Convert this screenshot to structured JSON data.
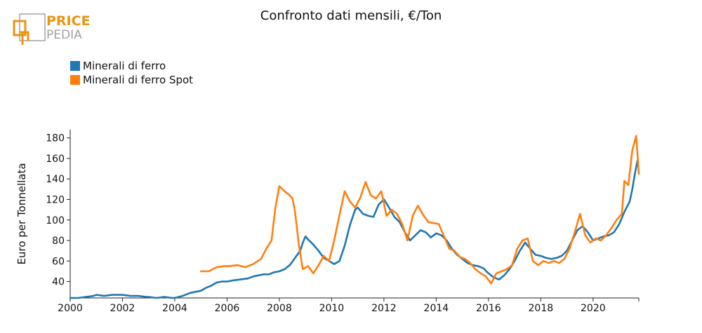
{
  "logo": {
    "line1": "PRICE",
    "line2": "PEDIA",
    "accent": "#e8960f",
    "gray": "#a0a0a0"
  },
  "chart_data": {
    "type": "line",
    "title": "Confronto dati mensili, €/Ton",
    "ylabel": "Euro per Tonnellata",
    "xlabel": "",
    "xlim": [
      2000,
      2021.75
    ],
    "ylim": [
      24,
      188
    ],
    "x_ticks": [
      2000,
      2002,
      2004,
      2006,
      2008,
      2010,
      2012,
      2014,
      2016,
      2018,
      2020
    ],
    "x_tick_labels": [
      "2000",
      "2002",
      "2004",
      "2006",
      "2008",
      "2010",
      "2012",
      "2014",
      "2016",
      "2018",
      "2020"
    ],
    "y_ticks": [
      40,
      60,
      80,
      100,
      120,
      140,
      160,
      180
    ],
    "y_tick_labels": [
      "40",
      "60",
      "80",
      "100",
      "120",
      "140",
      "160",
      "180"
    ],
    "legend_position": "top-left",
    "grid": false,
    "series": [
      {
        "name": "Minerali di ferro",
        "color": "#1f77b4",
        "points": [
          [
            2000.0,
            24
          ],
          [
            2000.3,
            24
          ],
          [
            2000.6,
            25
          ],
          [
            2000.9,
            26
          ],
          [
            2001.0,
            27
          ],
          [
            2001.3,
            26
          ],
          [
            2001.6,
            27
          ],
          [
            2001.9,
            27
          ],
          [
            2002.0,
            27
          ],
          [
            2002.3,
            26
          ],
          [
            2002.6,
            26
          ],
          [
            2002.9,
            25
          ],
          [
            2003.0,
            25
          ],
          [
            2003.3,
            24
          ],
          [
            2003.6,
            25
          ],
          [
            2003.9,
            24
          ],
          [
            2004.0,
            24
          ],
          [
            2004.3,
            26
          ],
          [
            2004.6,
            29
          ],
          [
            2004.8,
            30
          ],
          [
            2005.0,
            31
          ],
          [
            2005.2,
            34
          ],
          [
            2005.4,
            36
          ],
          [
            2005.6,
            39
          ],
          [
            2005.8,
            40
          ],
          [
            2006.0,
            40
          ],
          [
            2006.2,
            41
          ],
          [
            2006.5,
            42
          ],
          [
            2006.8,
            43
          ],
          [
            2007.0,
            45
          ],
          [
            2007.2,
            46
          ],
          [
            2007.4,
            47
          ],
          [
            2007.6,
            47
          ],
          [
            2007.8,
            49
          ],
          [
            2008.0,
            50
          ],
          [
            2008.2,
            52
          ],
          [
            2008.4,
            56
          ],
          [
            2008.6,
            63
          ],
          [
            2008.8,
            70
          ],
          [
            2008.9,
            78
          ],
          [
            2009.0,
            84
          ],
          [
            2009.1,
            81
          ],
          [
            2009.3,
            76
          ],
          [
            2009.5,
            70
          ],
          [
            2009.7,
            63
          ],
          [
            2009.9,
            60
          ],
          [
            2010.1,
            57
          ],
          [
            2010.3,
            60
          ],
          [
            2010.5,
            75
          ],
          [
            2010.7,
            95
          ],
          [
            2010.9,
            110
          ],
          [
            2011.0,
            112
          ],
          [
            2011.2,
            106
          ],
          [
            2011.4,
            104
          ],
          [
            2011.6,
            103
          ],
          [
            2011.8,
            115
          ],
          [
            2012.0,
            120
          ],
          [
            2012.2,
            112
          ],
          [
            2012.4,
            103
          ],
          [
            2012.6,
            98
          ],
          [
            2012.8,
            88
          ],
          [
            2013.0,
            80
          ],
          [
            2013.2,
            85
          ],
          [
            2013.4,
            90
          ],
          [
            2013.6,
            88
          ],
          [
            2013.8,
            83
          ],
          [
            2014.0,
            87
          ],
          [
            2014.2,
            85
          ],
          [
            2014.4,
            80
          ],
          [
            2014.6,
            72
          ],
          [
            2014.8,
            66
          ],
          [
            2015.0,
            62
          ],
          [
            2015.2,
            58
          ],
          [
            2015.4,
            56
          ],
          [
            2015.6,
            55
          ],
          [
            2015.8,
            53
          ],
          [
            2016.0,
            48
          ],
          [
            2016.2,
            44
          ],
          [
            2016.4,
            42
          ],
          [
            2016.6,
            46
          ],
          [
            2016.8,
            52
          ],
          [
            2017.0,
            60
          ],
          [
            2017.2,
            70
          ],
          [
            2017.4,
            78
          ],
          [
            2017.6,
            72
          ],
          [
            2017.8,
            66
          ],
          [
            2018.0,
            65
          ],
          [
            2018.2,
            63
          ],
          [
            2018.4,
            62
          ],
          [
            2018.6,
            63
          ],
          [
            2018.8,
            65
          ],
          [
            2019.0,
            70
          ],
          [
            2019.2,
            80
          ],
          [
            2019.4,
            90
          ],
          [
            2019.6,
            94
          ],
          [
            2019.8,
            88
          ],
          [
            2020.0,
            80
          ],
          [
            2020.2,
            82
          ],
          [
            2020.4,
            84
          ],
          [
            2020.6,
            85
          ],
          [
            2020.8,
            88
          ],
          [
            2021.0,
            96
          ],
          [
            2021.2,
            108
          ],
          [
            2021.4,
            118
          ],
          [
            2021.5,
            130
          ],
          [
            2021.6,
            145
          ],
          [
            2021.7,
            158
          ]
        ]
      },
      {
        "name": "Minerali di ferro Spot",
        "color": "#ff7f0e",
        "points": [
          [
            2005.0,
            50
          ],
          [
            2005.3,
            50
          ],
          [
            2005.6,
            54
          ],
          [
            2005.9,
            55
          ],
          [
            2006.1,
            55
          ],
          [
            2006.4,
            56
          ],
          [
            2006.7,
            54
          ],
          [
            2007.0,
            57
          ],
          [
            2007.3,
            62
          ],
          [
            2007.5,
            72
          ],
          [
            2007.7,
            80
          ],
          [
            2007.85,
            112
          ],
          [
            2008.0,
            133
          ],
          [
            2008.2,
            128
          ],
          [
            2008.4,
            124
          ],
          [
            2008.5,
            121
          ],
          [
            2008.6,
            108
          ],
          [
            2008.75,
            75
          ],
          [
            2008.9,
            52
          ],
          [
            2009.1,
            55
          ],
          [
            2009.3,
            48
          ],
          [
            2009.5,
            56
          ],
          [
            2009.7,
            65
          ],
          [
            2009.9,
            60
          ],
          [
            2010.1,
            80
          ],
          [
            2010.3,
            105
          ],
          [
            2010.5,
            128
          ],
          [
            2010.7,
            118
          ],
          [
            2010.9,
            112
          ],
          [
            2011.1,
            122
          ],
          [
            2011.3,
            137
          ],
          [
            2011.5,
            124
          ],
          [
            2011.7,
            121
          ],
          [
            2011.9,
            128
          ],
          [
            2012.1,
            104
          ],
          [
            2012.3,
            110
          ],
          [
            2012.5,
            106
          ],
          [
            2012.7,
            96
          ],
          [
            2012.9,
            80
          ],
          [
            2013.1,
            104
          ],
          [
            2013.3,
            114
          ],
          [
            2013.5,
            105
          ],
          [
            2013.7,
            98
          ],
          [
            2013.9,
            97
          ],
          [
            2014.1,
            96
          ],
          [
            2014.3,
            84
          ],
          [
            2014.5,
            72
          ],
          [
            2014.7,
            70
          ],
          [
            2014.9,
            64
          ],
          [
            2015.1,
            62
          ],
          [
            2015.3,
            58
          ],
          [
            2015.5,
            52
          ],
          [
            2015.7,
            48
          ],
          [
            2015.9,
            45
          ],
          [
            2016.1,
            38
          ],
          [
            2016.3,
            48
          ],
          [
            2016.5,
            50
          ],
          [
            2016.7,
            52
          ],
          [
            2016.9,
            56
          ],
          [
            2017.1,
            72
          ],
          [
            2017.3,
            80
          ],
          [
            2017.5,
            82
          ],
          [
            2017.7,
            60
          ],
          [
            2017.9,
            56
          ],
          [
            2018.1,
            60
          ],
          [
            2018.3,
            58
          ],
          [
            2018.5,
            60
          ],
          [
            2018.7,
            58
          ],
          [
            2018.9,
            62
          ],
          [
            2019.1,
            72
          ],
          [
            2019.3,
            88
          ],
          [
            2019.5,
            106
          ],
          [
            2019.7,
            85
          ],
          [
            2019.9,
            78
          ],
          [
            2020.1,
            82
          ],
          [
            2020.3,
            80
          ],
          [
            2020.5,
            85
          ],
          [
            2020.7,
            92
          ],
          [
            2020.9,
            100
          ],
          [
            2021.1,
            106
          ],
          [
            2021.2,
            138
          ],
          [
            2021.35,
            134
          ],
          [
            2021.5,
            168
          ],
          [
            2021.65,
            182
          ],
          [
            2021.75,
            145
          ]
        ]
      }
    ]
  }
}
